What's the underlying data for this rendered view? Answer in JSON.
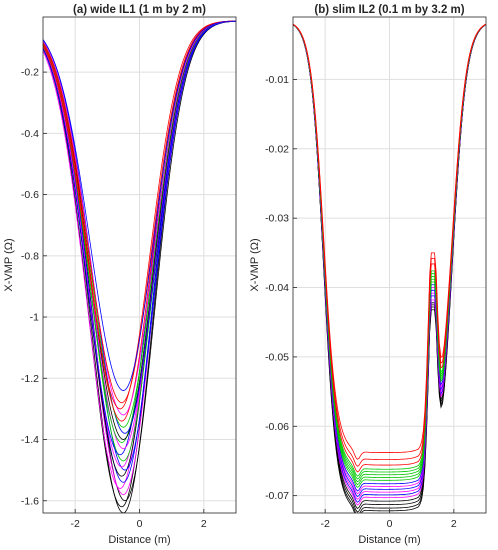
{
  "chart_data": [
    {
      "type": "line",
      "title": "(a) wide IL1 (1 m by 2 m)",
      "xlabel": "Distance (m)",
      "ylabel": "X-VMP  (Ω)",
      "xlim": [
        -3,
        3
      ],
      "ylim": [
        -1.64,
        -0.02
      ],
      "xticks": [
        -2,
        0,
        2
      ],
      "yticks": [
        -0.2,
        -0.4,
        -0.6,
        -0.8,
        -1,
        -1.2,
        -1.4,
        -1.6
      ],
      "xtick_labels": [
        "-2",
        "0",
        "2"
      ],
      "ytick_labels": [
        "-0.2",
        "-0.4",
        "-0.6",
        "-0.8",
        "-1",
        "-1.2",
        "-1.4",
        "-1.6"
      ],
      "grid": true,
      "profile_x": [
        -3,
        -2.85,
        -2.7,
        -2.55,
        -2.4,
        -2.25,
        -2.1,
        -1.95,
        -1.8,
        -1.65,
        -1.5,
        -1.35,
        -1.2,
        -1.05,
        -0.9,
        -0.75,
        -0.6,
        -0.45,
        -0.3,
        -0.15,
        0,
        0.15,
        0.3,
        0.45,
        0.6,
        0.75,
        0.9,
        1.05,
        1.2,
        1.35,
        1.5,
        1.65,
        1.8,
        1.95,
        2.1,
        2.25,
        2.4,
        2.55,
        2.7,
        2.85,
        3
      ],
      "series": [
        {
          "color": "#000000",
          "minimum": -1.64,
          "x_at_minimum": -0.5
        },
        {
          "color": "#000000",
          "minimum": -1.62,
          "x_at_minimum": -0.55
        },
        {
          "color": "#000000",
          "minimum": -1.6,
          "x_at_minimum": -0.45
        },
        {
          "color": "#ff00ff",
          "minimum": -1.58,
          "x_at_minimum": -0.5
        },
        {
          "color": "#ff00ff",
          "minimum": -1.56,
          "x_at_minimum": -0.6
        },
        {
          "color": "#0000ff",
          "minimum": -1.54,
          "x_at_minimum": -0.5
        },
        {
          "color": "#000000",
          "minimum": -1.52,
          "x_at_minimum": -0.55
        },
        {
          "color": "#0000ff",
          "minimum": -1.5,
          "x_at_minimum": -0.45
        },
        {
          "color": "#ff00ff",
          "minimum": -1.49,
          "x_at_minimum": -0.55
        },
        {
          "color": "#00c800",
          "minimum": -1.47,
          "x_at_minimum": -0.5
        },
        {
          "color": "#0000ff",
          "minimum": -1.45,
          "x_at_minimum": -0.6
        },
        {
          "color": "#ff00ff",
          "minimum": -1.43,
          "x_at_minimum": -0.5
        },
        {
          "color": "#00c800",
          "minimum": -1.41,
          "x_at_minimum": -0.55
        },
        {
          "color": "#000000",
          "minimum": -1.4,
          "x_at_minimum": -0.5
        },
        {
          "color": "#0000ff",
          "minimum": -1.38,
          "x_at_minimum": -0.45
        },
        {
          "color": "#00c800",
          "minimum": -1.36,
          "x_at_minimum": -0.5
        },
        {
          "color": "#ff0000",
          "minimum": -1.34,
          "x_at_minimum": -0.55
        },
        {
          "color": "#ff00ff",
          "minimum": -1.32,
          "x_at_minimum": -0.5
        },
        {
          "color": "#ff0000",
          "minimum": -1.3,
          "x_at_minimum": -0.6
        },
        {
          "color": "#ff0000",
          "minimum": -1.28,
          "x_at_minimum": -0.55
        },
        {
          "color": "#0000ff",
          "minimum": -1.24,
          "x_at_minimum": -0.5
        }
      ]
    },
    {
      "type": "line",
      "title": "(b) slim IL2 (0.1 m by 3.2 m)",
      "xlabel": "Distance (m)",
      "ylabel": "X-VMP  (Ω)",
      "xlim": [
        -3,
        3
      ],
      "ylim": [
        -0.0725,
        -0.001
      ],
      "xticks": [
        -2,
        0,
        2
      ],
      "yticks": [
        -0.01,
        -0.02,
        -0.03,
        -0.04,
        -0.05,
        -0.06,
        -0.07
      ],
      "xtick_labels": [
        "-2",
        "0",
        "2"
      ],
      "ytick_labels": [
        "-0.01",
        "-0.02",
        "-0.03",
        "-0.04",
        "-0.05",
        "-0.06",
        "-0.07"
      ],
      "grid": true,
      "profile_x": [
        -3,
        -2.85,
        -2.7,
        -2.55,
        -2.4,
        -2.25,
        -2.1,
        -1.95,
        -1.8,
        -1.65,
        -1.5,
        -1.35,
        -1.2,
        -1.05,
        -0.9,
        -0.75,
        -0.6,
        -0.45,
        -0.3,
        -0.15,
        0,
        0.15,
        0.3,
        0.45,
        0.6,
        0.75,
        0.9,
        1.05,
        1.2,
        1.35,
        1.5,
        1.65,
        1.8,
        1.95,
        2.1,
        2.25,
        2.4,
        2.55,
        2.7,
        2.85,
        3
      ],
      "series": [
        {
          "color": "#000000",
          "minimum": -0.0722,
          "step_at_1_3": -0.0432
        },
        {
          "color": "#000000",
          "minimum": -0.0718,
          "step_at_1_3": -0.0428
        },
        {
          "color": "#000000",
          "minimum": -0.0713,
          "step_at_1_3": -0.0425
        },
        {
          "color": "#000000",
          "minimum": -0.0708,
          "step_at_1_3": -0.0422
        },
        {
          "color": "#ff00ff",
          "minimum": -0.0703,
          "step_at_1_3": -0.0418
        },
        {
          "color": "#0000ff",
          "minimum": -0.0699,
          "step_at_1_3": -0.0412
        },
        {
          "color": "#ff00ff",
          "minimum": -0.0695,
          "step_at_1_3": -0.0408
        },
        {
          "color": "#0000ff",
          "minimum": -0.0691,
          "step_at_1_3": -0.0404
        },
        {
          "color": "#ff00ff",
          "minimum": -0.0687,
          "step_at_1_3": -0.04
        },
        {
          "color": "#0000ff",
          "minimum": -0.0683,
          "step_at_1_3": -0.0396
        },
        {
          "color": "#00c800",
          "minimum": -0.0678,
          "step_at_1_3": -0.0392
        },
        {
          "color": "#00c800",
          "minimum": -0.0674,
          "step_at_1_3": -0.0388
        },
        {
          "color": "#00c800",
          "minimum": -0.067,
          "step_at_1_3": -0.0384
        },
        {
          "color": "#00c800",
          "minimum": -0.0666,
          "step_at_1_3": -0.038
        },
        {
          "color": "#00c800",
          "minimum": -0.0662,
          "step_at_1_3": -0.0376
        },
        {
          "color": "#ff0000",
          "minimum": -0.0656,
          "step_at_1_3": -0.0366
        },
        {
          "color": "#ff0000",
          "minimum": -0.0648,
          "step_at_1_3": -0.0358
        },
        {
          "color": "#ff0000",
          "minimum": -0.0638,
          "step_at_1_3": -0.035
        }
      ]
    }
  ]
}
